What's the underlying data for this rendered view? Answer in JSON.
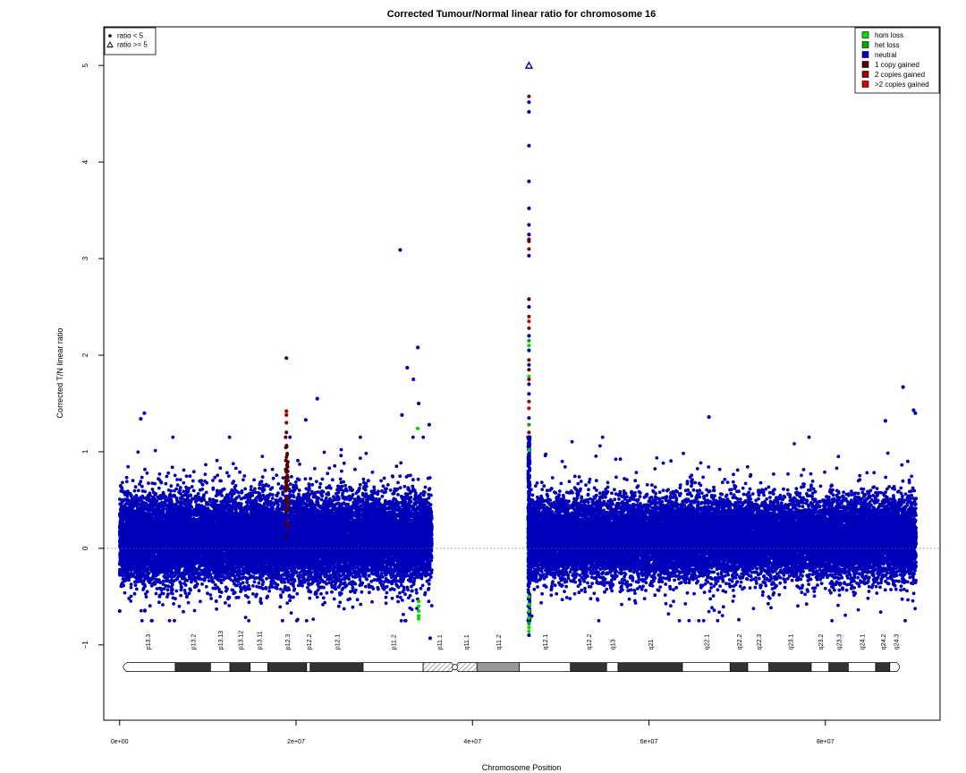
{
  "chart_data": {
    "type": "scatter",
    "title": "Corrected Tumour/Normal linear ratio for chromosome  16",
    "xlabel": "Chromosome Position",
    "ylabel": "Corrected T/N linear ratio",
    "xlim": [
      -1800000,
      93000000
    ],
    "ylim": [
      -1.78,
      5.4
    ],
    "x_ticks": [
      {
        "value": 0,
        "label": "0e+00"
      },
      {
        "value": 20000000,
        "label": "2e+07"
      },
      {
        "value": 40000000,
        "label": "4e+07"
      },
      {
        "value": 60000000,
        "label": "6e+07"
      },
      {
        "value": 80000000,
        "label": "8e+07"
      }
    ],
    "y_ticks": [
      {
        "value": -1,
        "label": "−1"
      },
      {
        "value": 0,
        "label": "0"
      },
      {
        "value": 1,
        "label": "1"
      },
      {
        "value": 2,
        "label": "2"
      },
      {
        "value": 3,
        "label": "3"
      },
      {
        "value": 4,
        "label": "4"
      },
      {
        "value": 5,
        "label": "5"
      }
    ],
    "reference_line": {
      "y": 0,
      "style": "dotted"
    },
    "grid": false,
    "ratio_cap": 5,
    "shape_legend": {
      "placement": "top-left",
      "entries": [
        {
          "label": "ratio < 5",
          "symbol": "dot"
        },
        {
          "label": "ratio >= 5",
          "symbol": "triangle"
        }
      ]
    },
    "color_legend": {
      "placement": "top-right",
      "entries": [
        {
          "label": "hom loss",
          "color": "#00dd00"
        },
        {
          "label": "het loss",
          "color": "#00aa00"
        },
        {
          "label": "neutral",
          "color": "#0000bb"
        },
        {
          "label": "1 copy gained",
          "color": "#550000"
        },
        {
          "label": "2 copies gained",
          "color": "#990000"
        },
        {
          "label": ">2 copies gained",
          "color": "#dd0000"
        }
      ]
    },
    "density_regions": [
      {
        "class": "neutral",
        "x_start": 0,
        "x_end": 35400000,
        "median": 0.1,
        "spread": 0.22,
        "count": 16000
      },
      {
        "class": "neutral",
        "x_start": 46400000,
        "x_end": 90300000,
        "median": 0.1,
        "spread": 0.2,
        "count": 19000
      },
      {
        "class": "neutral",
        "x_start": 46300000,
        "x_end": 46500000,
        "median": 0.3,
        "spread": 0.6,
        "count": 350
      },
      {
        "class": "1 copy gained",
        "x_start": 18800000,
        "x_end": 19100000,
        "median": 0.65,
        "spread": 0.2,
        "count": 60
      }
    ],
    "points": [
      {
        "x": 31800000,
        "y": 3.09,
        "class": "neutral"
      },
      {
        "x": 33800000,
        "y": 2.08,
        "class": "neutral"
      },
      {
        "x": 33300000,
        "y": 1.75,
        "class": "neutral"
      },
      {
        "x": 32600000,
        "y": 1.87,
        "class": "neutral"
      },
      {
        "x": 33900000,
        "y": 1.5,
        "class": "neutral"
      },
      {
        "x": 32000000,
        "y": 1.38,
        "class": "neutral"
      },
      {
        "x": 22400000,
        "y": 1.55,
        "class": "neutral"
      },
      {
        "x": 21100000,
        "y": 1.33,
        "class": "neutral"
      },
      {
        "x": 2800000,
        "y": 1.4,
        "class": "neutral"
      },
      {
        "x": 2400000,
        "y": 1.34,
        "class": "neutral"
      },
      {
        "x": 66800000,
        "y": 1.36,
        "class": "neutral"
      },
      {
        "x": 88800000,
        "y": 1.67,
        "class": "neutral"
      },
      {
        "x": 90000000,
        "y": 1.43,
        "class": "neutral"
      },
      {
        "x": 90200000,
        "y": 1.4,
        "class": "neutral"
      },
      {
        "x": 86800000,
        "y": 1.32,
        "class": "neutral"
      },
      {
        "x": 0,
        "y": -0.65,
        "class": "neutral"
      },
      {
        "x": 35200000,
        "y": -0.93,
        "class": "neutral"
      },
      {
        "x": 35100000,
        "y": 1.28,
        "class": "neutral"
      },
      {
        "x": 18900000,
        "y": 1.97,
        "class": "1 copy gained"
      },
      {
        "x": 18900000,
        "y": 1.42,
        "class": "2 copies gained"
      },
      {
        "x": 18900000,
        "y": 1.38,
        "class": "2 copies gained"
      },
      {
        "x": 18900000,
        "y": 1.3,
        "class": "2 copies gained"
      },
      {
        "x": 18900000,
        "y": 1.2,
        "class": "1 copy gained"
      },
      {
        "x": 33800000,
        "y": 1.24,
        "class": "hom loss"
      },
      {
        "x": 33900000,
        "y": -0.55,
        "class": "hom loss"
      },
      {
        "x": 33900000,
        "y": -0.6,
        "class": "hom loss"
      },
      {
        "x": 33900000,
        "y": -0.65,
        "class": "hom loss"
      },
      {
        "x": 33900000,
        "y": -0.7,
        "class": "hom loss"
      },
      {
        "x": 33900000,
        "y": -0.73,
        "class": "hom loss"
      },
      {
        "x": 46400000,
        "y": 4.68,
        "class": "2 copies gained"
      },
      {
        "x": 46400000,
        "y": 4.62,
        "class": "neutral"
      },
      {
        "x": 46400000,
        "y": 4.52,
        "class": "neutral"
      },
      {
        "x": 46400000,
        "y": 4.17,
        "class": "neutral"
      },
      {
        "x": 46400000,
        "y": 3.8,
        "class": "neutral"
      },
      {
        "x": 46400000,
        "y": 3.52,
        "class": "neutral"
      },
      {
        "x": 46400000,
        "y": 3.35,
        "class": "neutral"
      },
      {
        "x": 46400000,
        "y": 3.25,
        "class": "neutral"
      },
      {
        "x": 46400000,
        "y": 3.2,
        "class": "2 copies gained"
      },
      {
        "x": 46400000,
        "y": 3.18,
        "class": "1 copy gained"
      },
      {
        "x": 46400000,
        "y": 3.1,
        "class": "2 copies gained"
      },
      {
        "x": 46400000,
        "y": 3.03,
        "class": "neutral"
      },
      {
        "x": 46400000,
        "y": 2.58,
        "class": "1 copy gained"
      },
      {
        "x": 46400000,
        "y": 2.5,
        "class": "neutral"
      },
      {
        "x": 46400000,
        "y": 2.4,
        "class": "2 copies gained"
      },
      {
        "x": 46400000,
        "y": 2.35,
        "class": ">2 copies gained"
      },
      {
        "x": 46400000,
        "y": 2.28,
        "class": "2 copies gained"
      },
      {
        "x": 46400000,
        "y": 2.2,
        "class": "neutral"
      },
      {
        "x": 46400000,
        "y": 2.15,
        "class": "het loss"
      },
      {
        "x": 46400000,
        "y": 2.1,
        "class": "hom loss"
      },
      {
        "x": 46400000,
        "y": 2.05,
        "class": "neutral"
      },
      {
        "x": 46400000,
        "y": 1.95,
        "class": "2 copies gained"
      },
      {
        "x": 46400000,
        "y": 1.9,
        "class": "neutral"
      },
      {
        "x": 46400000,
        "y": 1.85,
        "class": "1 copy gained"
      },
      {
        "x": 46400000,
        "y": 1.78,
        "class": "hom loss"
      },
      {
        "x": 46400000,
        "y": 1.75,
        "class": "2 copies gained"
      },
      {
        "x": 46400000,
        "y": 1.7,
        "class": "neutral"
      },
      {
        "x": 46400000,
        "y": 1.6,
        "class": "neutral"
      },
      {
        "x": 46400000,
        "y": 1.52,
        "class": "2 copies gained"
      },
      {
        "x": 46400000,
        "y": 1.45,
        "class": ">2 copies gained"
      },
      {
        "x": 46400000,
        "y": 1.35,
        "class": "neutral"
      },
      {
        "x": 46400000,
        "y": 1.28,
        "class": "het loss"
      },
      {
        "x": 46400000,
        "y": 1.2,
        "class": "2 copies gained"
      },
      {
        "x": 46400000,
        "y": 1.1,
        "class": "neutral"
      },
      {
        "x": 46400000,
        "y": 1.02,
        "class": "hom loss"
      },
      {
        "x": 46400000,
        "y": -0.5,
        "class": "hom loss"
      },
      {
        "x": 46400000,
        "y": -0.58,
        "class": "hom loss"
      },
      {
        "x": 46400000,
        "y": -0.65,
        "class": "hom loss"
      },
      {
        "x": 46400000,
        "y": -0.72,
        "class": "hom loss"
      },
      {
        "x": 46400000,
        "y": -0.78,
        "class": "het loss"
      },
      {
        "x": 46400000,
        "y": -0.82,
        "class": "hom loss"
      },
      {
        "x": 46400000,
        "y": -0.86,
        "class": "hom loss"
      },
      {
        "x": 46400000,
        "y": -0.9,
        "class": "neutral"
      }
    ],
    "capped_points": [
      {
        "x": 46400000,
        "y": 5,
        "class": "neutral"
      }
    ],
    "ideogram": {
      "y_center": -1.23,
      "label_y": -1.05,
      "centromere_x": 38000000,
      "bands": [
        {
          "name": "p13.3",
          "start": 0,
          "end": 6300000,
          "stain": "gneg"
        },
        {
          "name": "p13.2",
          "start": 6300000,
          "end": 10300000,
          "stain": "gpos"
        },
        {
          "name": "p13.13",
          "start": 10300000,
          "end": 12500000,
          "stain": "gneg"
        },
        {
          "name": "p13.12",
          "start": 12500000,
          "end": 14800000,
          "stain": "gpos"
        },
        {
          "name": "p13.11",
          "start": 14800000,
          "end": 16800000,
          "stain": "gneg"
        },
        {
          "name": "p12.3",
          "start": 16800000,
          "end": 21200000,
          "stain": "gpos"
        },
        {
          "name": "p12.2",
          "start": 21200000,
          "end": 21600000,
          "stain": "gneg"
        },
        {
          "name": "p12.1",
          "start": 21600000,
          "end": 27600000,
          "stain": "gpos"
        },
        {
          "name": "p11.2",
          "start": 27600000,
          "end": 34400000,
          "stain": "gneg"
        },
        {
          "name": "p11.1",
          "start": 34400000,
          "end": 38000000,
          "stain": "acen"
        },
        {
          "name": "q11.1",
          "start": 38000000,
          "end": 40500000,
          "stain": "acen"
        },
        {
          "name": "q11.2",
          "start": 40500000,
          "end": 45300000,
          "stain": "gvar"
        },
        {
          "name": "q12.1",
          "start": 45300000,
          "end": 51100000,
          "stain": "gneg"
        },
        {
          "name": "q12.2",
          "start": 51100000,
          "end": 55200000,
          "stain": "gpos"
        },
        {
          "name": "q13",
          "start": 55200000,
          "end": 56500000,
          "stain": "gneg"
        },
        {
          "name": "q21",
          "start": 56500000,
          "end": 63800000,
          "stain": "gpos"
        },
        {
          "name": "q22.1",
          "start": 63800000,
          "end": 69200000,
          "stain": "gneg"
        },
        {
          "name": "q22.2",
          "start": 69200000,
          "end": 71200000,
          "stain": "gpos"
        },
        {
          "name": "q22.3",
          "start": 71200000,
          "end": 73600000,
          "stain": "gneg"
        },
        {
          "name": "q23.1",
          "start": 73600000,
          "end": 78400000,
          "stain": "gpos"
        },
        {
          "name": "q23.2",
          "start": 78400000,
          "end": 80400000,
          "stain": "gneg"
        },
        {
          "name": "q23.3",
          "start": 80400000,
          "end": 82600000,
          "stain": "gpos"
        },
        {
          "name": "q24.1",
          "start": 82600000,
          "end": 85700000,
          "stain": "gneg"
        },
        {
          "name": "q24.2",
          "start": 85700000,
          "end": 87300000,
          "stain": "gpos"
        },
        {
          "name": "q24.3",
          "start": 87300000,
          "end": 88700000,
          "stain": "gneg"
        }
      ]
    }
  }
}
